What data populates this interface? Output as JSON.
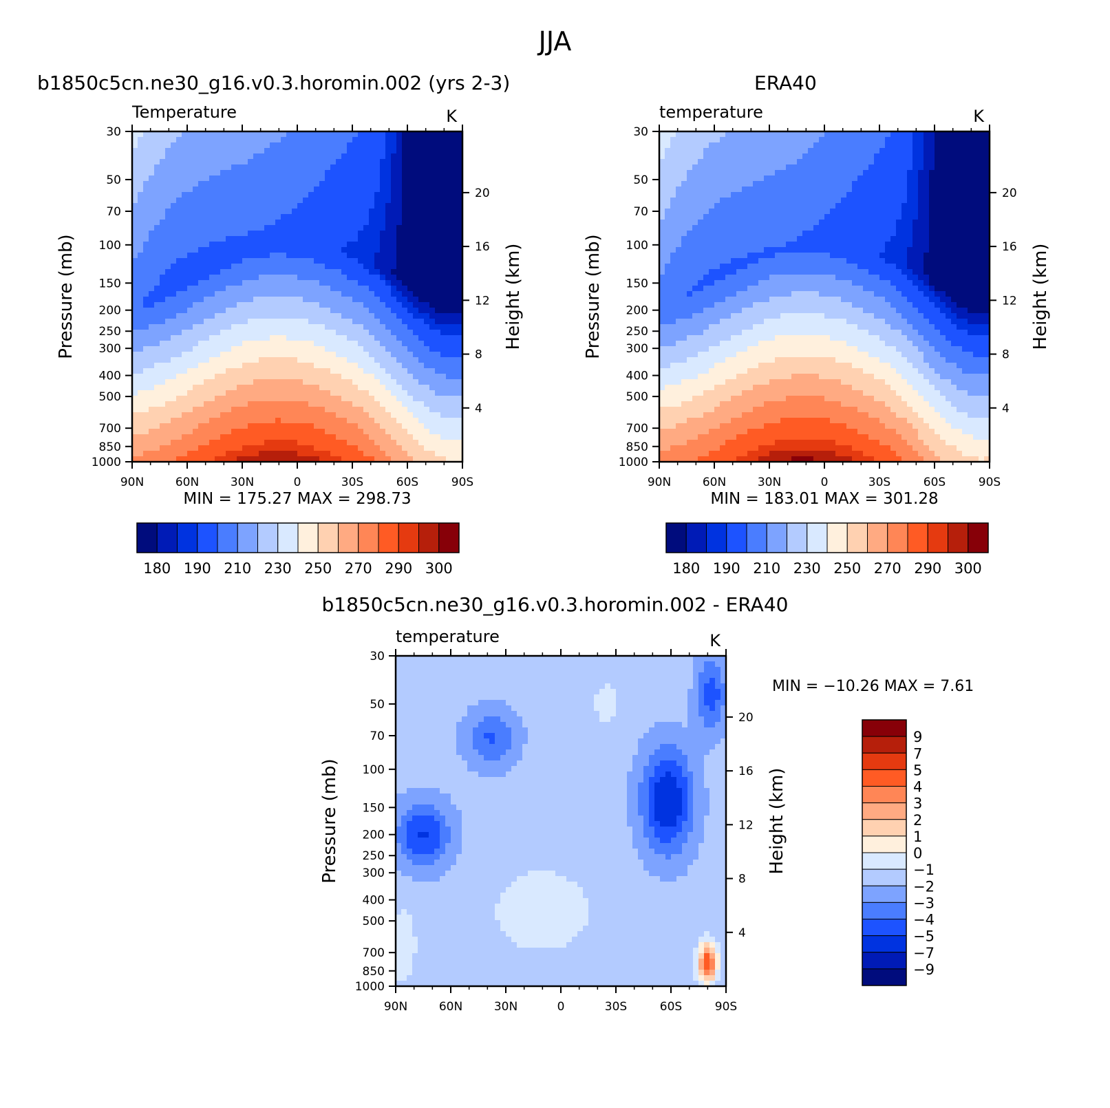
{
  "figure": {
    "season": "JJA",
    "colors": {
      "temperature_scale": [
        "#000c7d",
        "#001bb6",
        "#0033e0",
        "#1d53ff",
        "#4a7dff",
        "#7da3ff",
        "#b3cbff",
        "#d9e9ff",
        "#fff0dd",
        "#ffd1b1",
        "#ffaa82",
        "#ff8656",
        "#ff5b24",
        "#e53a10",
        "#b61f0b",
        "#870008"
      ],
      "difference_scale": [
        "#000c7d",
        "#001bb6",
        "#0033e0",
        "#1d53ff",
        "#4a7dff",
        "#7da3ff",
        "#b3cbff",
        "#d9e9ff",
        "#fff0dd",
        "#ffd1b1",
        "#ffaa82",
        "#ff8656",
        "#ff5b24",
        "#e53a10",
        "#b61f0b",
        "#870008"
      ]
    }
  },
  "chart_data": [
    {
      "id": "model",
      "type": "heatmap",
      "title": "b1850c5cn.ne30_g16.v0.3.horomin.002 (yrs 2-3)",
      "subtitle_left": "Temperature",
      "units": "K",
      "ylabel": "Pressure (mb)",
      "ylabel_right": "Height (km)",
      "x_ticks": [
        "90N",
        "60N",
        "30N",
        "0",
        "30S",
        "60S",
        "90S"
      ],
      "x_values": [
        90,
        60,
        30,
        0,
        -30,
        -60,
        -90
      ],
      "y_ticks": [
        30,
        50,
        70,
        100,
        150,
        200,
        250,
        300,
        400,
        500,
        700,
        850,
        1000
      ],
      "y_ticks_right": [
        20,
        16,
        12,
        8,
        4
      ],
      "ylim": [
        30,
        1000
      ],
      "min": 175.27,
      "max": 298.73,
      "min_label": "MIN = 175.27   MAX = 298.73",
      "colorbar_levels": [
        180,
        190,
        210,
        230,
        250,
        270,
        290,
        300
      ],
      "colorbar_tick_labels": [
        "180",
        "190",
        "210",
        "230",
        "250",
        "270",
        "290",
        "300"
      ],
      "levels": [
        175,
        180,
        185,
        190,
        200,
        210,
        220,
        230,
        240,
        250,
        260,
        270,
        280,
        290,
        295,
        300
      ]
    },
    {
      "id": "obs",
      "type": "heatmap",
      "title": "ERA40",
      "subtitle_left": "temperature",
      "units": "K",
      "ylabel": "Pressure (mb)",
      "ylabel_right": "Height (km)",
      "x_ticks": [
        "90N",
        "60N",
        "30N",
        "0",
        "30S",
        "60S",
        "90S"
      ],
      "x_values": [
        90,
        60,
        30,
        0,
        -30,
        -60,
        -90
      ],
      "y_ticks": [
        30,
        50,
        70,
        100,
        150,
        200,
        250,
        300,
        400,
        500,
        700,
        850,
        1000
      ],
      "y_ticks_right": [
        20,
        16,
        12,
        8,
        4
      ],
      "ylim": [
        30,
        1000
      ],
      "min": 183.01,
      "max": 301.28,
      "min_label": "MIN = 183.01   MAX = 301.28",
      "colorbar_levels": [
        180,
        190,
        210,
        230,
        250,
        270,
        290,
        300
      ],
      "colorbar_tick_labels": [
        "180",
        "190",
        "210",
        "230",
        "250",
        "270",
        "290",
        "300"
      ],
      "levels": [
        175,
        180,
        185,
        190,
        200,
        210,
        220,
        230,
        240,
        250,
        260,
        270,
        280,
        290,
        295,
        300
      ]
    },
    {
      "id": "diff",
      "type": "heatmap",
      "title": "b1850c5cn.ne30_g16.v0.3.horomin.002 - ERA40",
      "subtitle_left": "temperature",
      "units": "K",
      "ylabel": "Pressure (mb)",
      "ylabel_right": "Height (km)",
      "x_ticks": [
        "90N",
        "60N",
        "30N",
        "0",
        "30S",
        "60S",
        "90S"
      ],
      "x_values": [
        90,
        60,
        30,
        0,
        -30,
        -60,
        -90
      ],
      "y_ticks": [
        30,
        50,
        70,
        100,
        150,
        200,
        250,
        300,
        400,
        500,
        700,
        850,
        1000
      ],
      "y_ticks_right": [
        20,
        16,
        12,
        8,
        4
      ],
      "ylim": [
        30,
        1000
      ],
      "min": -10.26,
      "max": 7.61,
      "min_label": "MIN = −10.26   MAX =    7.61",
      "colorbar_tick_labels": [
        "9",
        "7",
        "5",
        "4",
        "3",
        "2",
        "1",
        "0",
        "−1",
        "−2",
        "−3",
        "−4",
        "−5",
        "−7",
        "−9"
      ],
      "levels": [
        -9,
        -7,
        -5,
        -4,
        -3,
        -2,
        -1,
        0,
        1,
        2,
        3,
        4,
        5,
        7,
        9
      ]
    }
  ]
}
